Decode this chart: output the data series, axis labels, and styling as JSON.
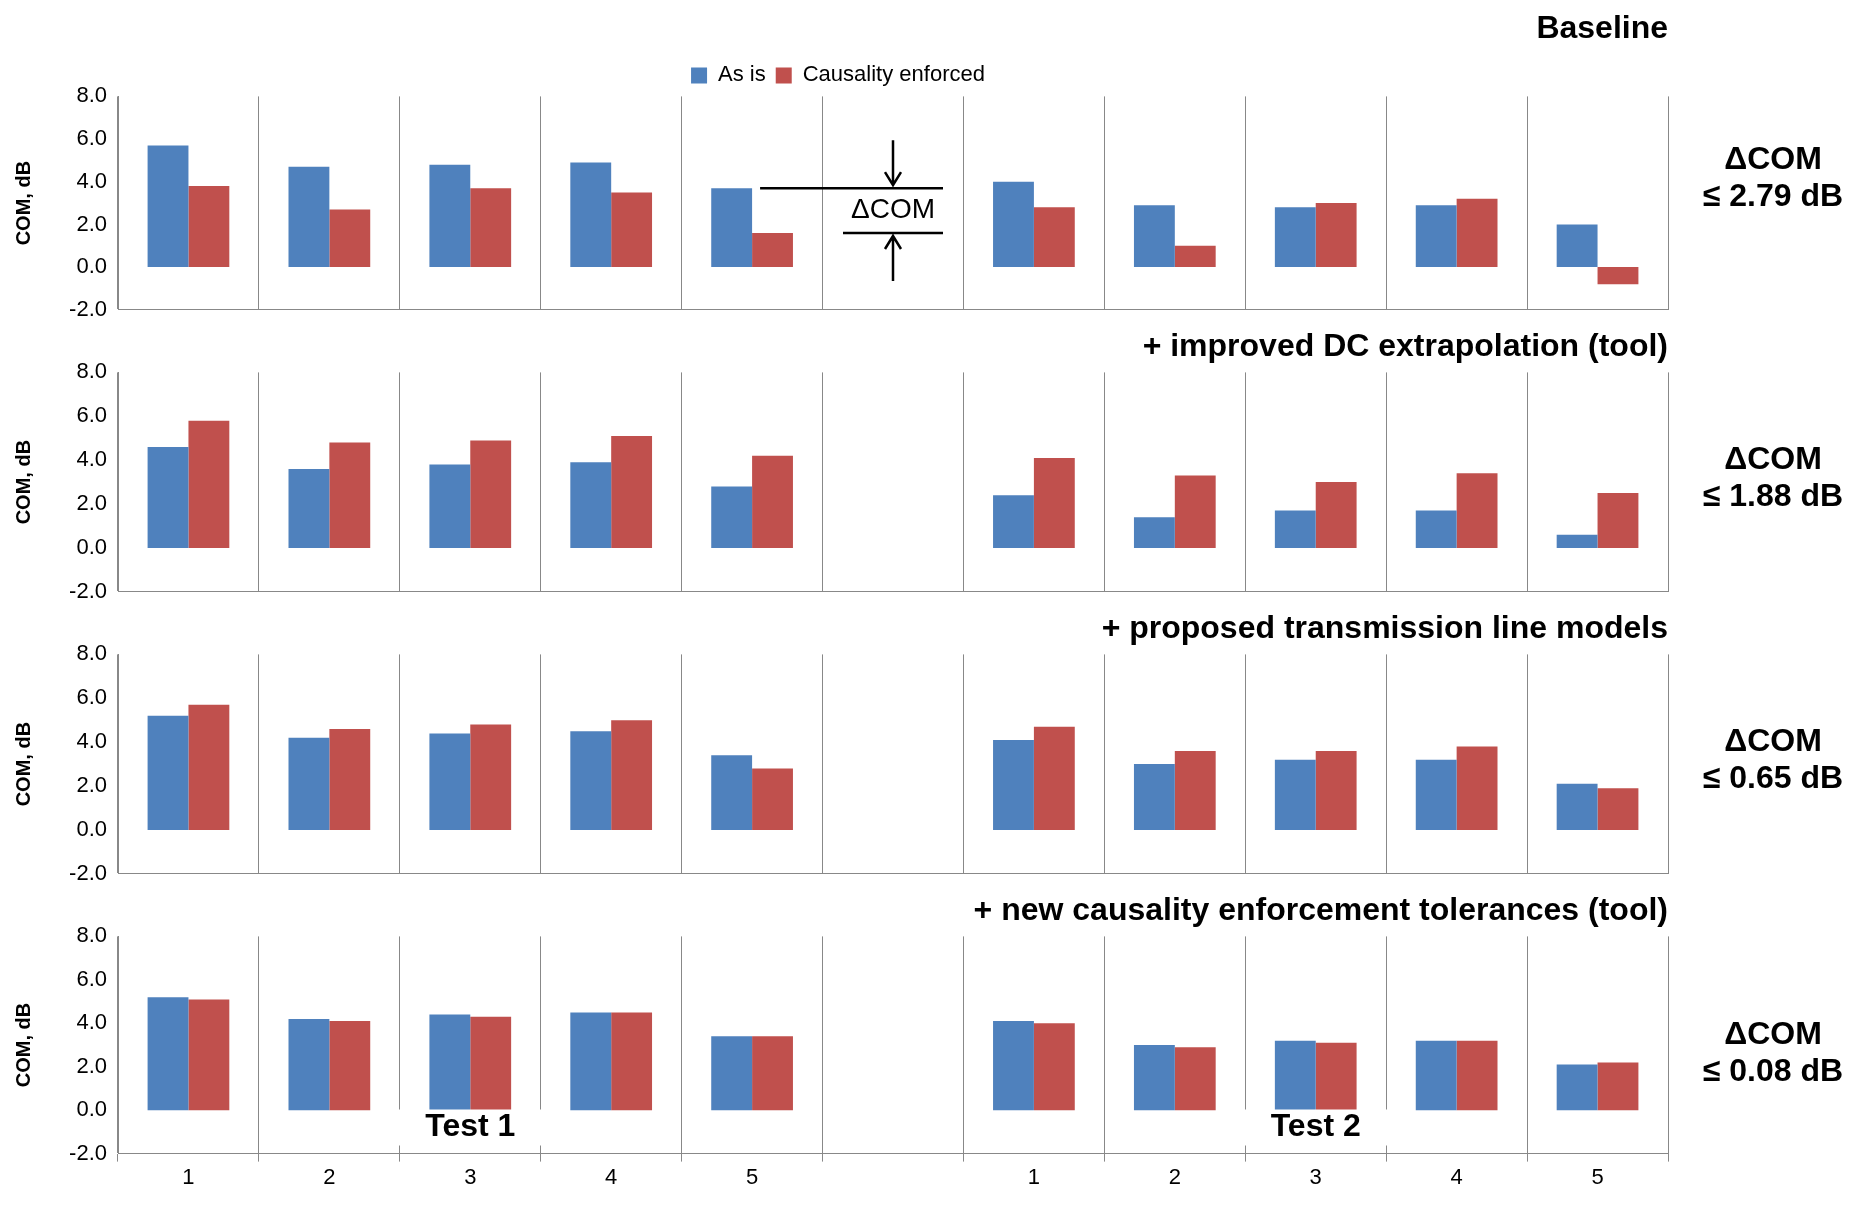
{
  "chart_data": [
    {
      "type": "bar",
      "title": "Baseline",
      "ylabel": "COM, dB",
      "categories": [
        "1",
        "2",
        "3",
        "4",
        "5",
        null,
        "1",
        "2",
        "3",
        "4",
        "5"
      ],
      "series": [
        {
          "name": "As is",
          "color": "#4f81bd",
          "values": [
            5.7,
            4.7,
            4.8,
            4.9,
            3.7,
            null,
            4.0,
            2.9,
            2.8,
            2.9,
            2.0
          ]
        },
        {
          "name": "Causality enforced",
          "color": "#c0504d",
          "values": [
            3.8,
            2.7,
            3.7,
            3.5,
            1.6,
            null,
            2.8,
            1.0,
            3.0,
            3.2,
            -0.8
          ]
        }
      ],
      "ylim": [
        -2,
        8
      ],
      "yticks": [
        {
          "value": -2,
          "label": "-2.0"
        },
        {
          "value": 0,
          "label": "0.0"
        },
        {
          "value": 2,
          "label": "2.0"
        },
        {
          "value": 4,
          "label": "4.0"
        },
        {
          "value": 6,
          "label": "6.0"
        },
        {
          "value": 8,
          "label": "8.0"
        }
      ],
      "grid": "x",
      "tick_labels": "y",
      "legend": "top",
      "annotations": [
        "ΔCOM\n≤ 2.79 dB",
        "ΔCOM"
      ]
    },
    {
      "type": "bar",
      "title": "+ improved DC extrapolation (tool)",
      "ylabel": "COM, dB",
      "categories": [
        "1",
        "2",
        "3",
        "4",
        "5",
        null,
        "1",
        "2",
        "3",
        "4",
        "5"
      ],
      "series": [
        {
          "color": "#4f81bd",
          "values": [
            4.6,
            3.6,
            3.8,
            3.9,
            2.8,
            null,
            2.4,
            1.4,
            1.7,
            1.7,
            0.6
          ]
        },
        {
          "color": "#c0504d",
          "values": [
            5.8,
            4.8,
            4.9,
            5.1,
            4.2,
            null,
            4.1,
            3.3,
            3.0,
            3.4,
            2.5
          ]
        }
      ],
      "ylim": [
        -2,
        8
      ],
      "yticks": [
        {
          "value": -2,
          "label": "-2.0"
        },
        {
          "value": 0,
          "label": "0.0"
        },
        {
          "value": 2,
          "label": "2.0"
        },
        {
          "value": 4,
          "label": "4.0"
        },
        {
          "value": 6,
          "label": "6.0"
        },
        {
          "value": 8,
          "label": "8.0"
        }
      ],
      "grid": "x",
      "tick_labels": "y",
      "annotations": [
        "ΔCOM\n≤ 1.88 dB"
      ]
    },
    {
      "type": "bar",
      "title": "+ proposed transmission line models",
      "ylabel": "COM, dB",
      "categories": [
        "1",
        "2",
        "3",
        "4",
        "5",
        null,
        "1",
        "2",
        "3",
        "4",
        "5"
      ],
      "series": [
        {
          "color": "#4f81bd",
          "values": [
            5.2,
            4.2,
            4.4,
            4.5,
            3.4,
            null,
            4.1,
            3.0,
            3.2,
            3.2,
            2.1
          ]
        },
        {
          "color": "#c0504d",
          "values": [
            5.7,
            4.6,
            4.8,
            5.0,
            2.8,
            null,
            4.7,
            3.6,
            3.6,
            3.8,
            1.9
          ]
        }
      ],
      "ylim": [
        -2,
        8
      ],
      "yticks": [
        {
          "value": -2,
          "label": "-2.0"
        },
        {
          "value": 0,
          "label": "0.0"
        },
        {
          "value": 2,
          "label": "2.0"
        },
        {
          "value": 4,
          "label": "4.0"
        },
        {
          "value": 6,
          "label": "6.0"
        },
        {
          "value": 8,
          "label": "8.0"
        }
      ],
      "grid": "x",
      "tick_labels": "y",
      "annotations": [
        "ΔCOM\n≤ 0.65 dB"
      ]
    },
    {
      "type": "bar",
      "title": "+ new causality enforcement tolerances (tool)",
      "ylabel": "COM, dB",
      "categories": [
        "1",
        "2",
        "3",
        "4",
        "5",
        null,
        "1",
        "2",
        "3",
        "4",
        "5"
      ],
      "series": [
        {
          "color": "#4f81bd",
          "values": [
            5.2,
            4.2,
            4.4,
            4.5,
            3.4,
            null,
            4.1,
            3.0,
            3.2,
            3.2,
            2.1
          ]
        },
        {
          "color": "#c0504d",
          "values": [
            5.1,
            4.1,
            4.3,
            4.5,
            3.4,
            null,
            4.0,
            2.9,
            3.1,
            3.2,
            2.2
          ]
        }
      ],
      "ylim": [
        -2,
        8
      ],
      "yticks": [
        {
          "value": -2,
          "label": "-2.0"
        },
        {
          "value": 0,
          "label": "0.0"
        },
        {
          "value": 2,
          "label": "2.0"
        },
        {
          "value": 4,
          "label": "4.0"
        },
        {
          "value": 6,
          "label": "6.0"
        },
        {
          "value": 8,
          "label": "8.0"
        }
      ],
      "grid": "x",
      "annotations": [
        "ΔCOM\n≤ 0.08 dB",
        "Test 1",
        "Test 2"
      ]
    }
  ]
}
